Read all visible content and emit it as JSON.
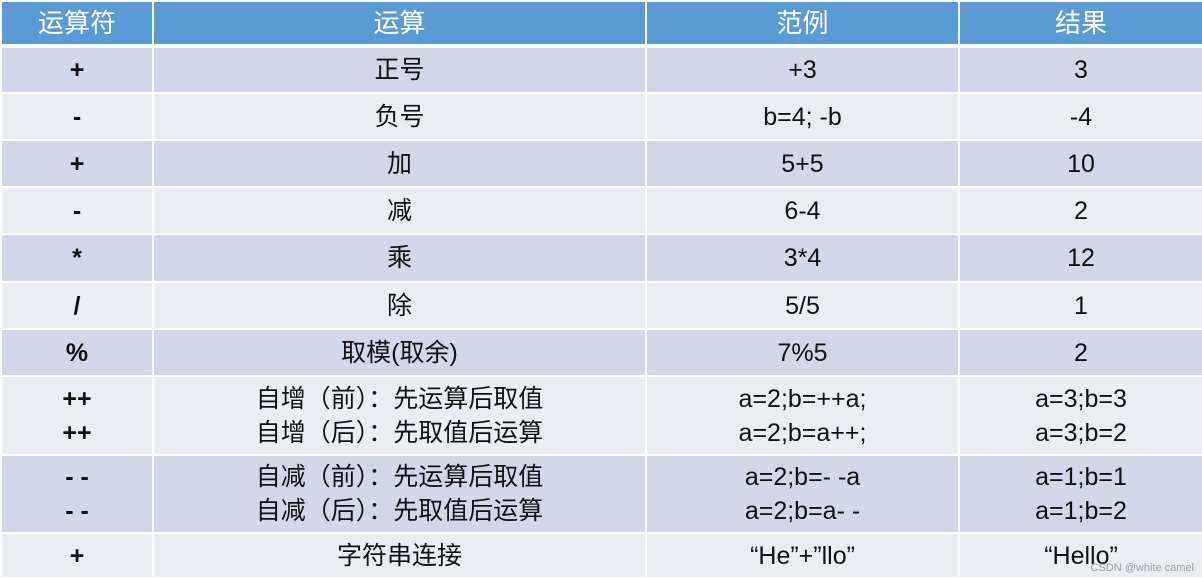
{
  "headers": [
    "运算符",
    "运算",
    "范例",
    "结果"
  ],
  "rows": [
    {
      "op": [
        "+"
      ],
      "name": [
        "正号"
      ],
      "example": [
        "+3"
      ],
      "result": [
        "3"
      ]
    },
    {
      "op": [
        "-"
      ],
      "name": [
        "负号"
      ],
      "example": [
        "b=4; -b"
      ],
      "result": [
        "-4"
      ]
    },
    {
      "op": [
        "+"
      ],
      "name": [
        "加"
      ],
      "example": [
        "5+5"
      ],
      "result": [
        "10"
      ]
    },
    {
      "op": [
        "-"
      ],
      "name": [
        "减"
      ],
      "example": [
        "6-4"
      ],
      "result": [
        "2"
      ]
    },
    {
      "op": [
        "*"
      ],
      "name": [
        "乘"
      ],
      "example": [
        "3*4"
      ],
      "result": [
        "12"
      ]
    },
    {
      "op": [
        "/"
      ],
      "name": [
        "除"
      ],
      "example": [
        "5/5"
      ],
      "result": [
        "1"
      ]
    },
    {
      "op": [
        "%"
      ],
      "name": [
        "取模(取余)"
      ],
      "example": [
        "7%5"
      ],
      "result": [
        "2"
      ]
    },
    {
      "op": [
        "++",
        "++"
      ],
      "name": [
        "自增（前）：先运算后取值",
        "自增（后）：先取值后运算"
      ],
      "example": [
        "a=2;b=++a;",
        "a=2;b=a++;"
      ],
      "result": [
        "a=3;b=3",
        "a=3;b=2"
      ]
    },
    {
      "op": [
        "- -",
        "- -"
      ],
      "name": [
        "自减（前）：先运算后取值",
        "自减（后）：先取值后运算"
      ],
      "example": [
        "a=2;b=- -a",
        "a=2;b=a- -"
      ],
      "result": [
        "a=1;b=1",
        "a=1;b=2"
      ]
    },
    {
      "op": [
        "+"
      ],
      "name": [
        "字符串连接"
      ],
      "example": [
        "“He”+”llo”"
      ],
      "result": [
        "“Hello”"
      ]
    }
  ],
  "watermark": "CSDN @white camel",
  "colors": {
    "header": "#5b9bd5",
    "row_dark": "#d0d8e9",
    "row_light": "#e9edf4"
  }
}
